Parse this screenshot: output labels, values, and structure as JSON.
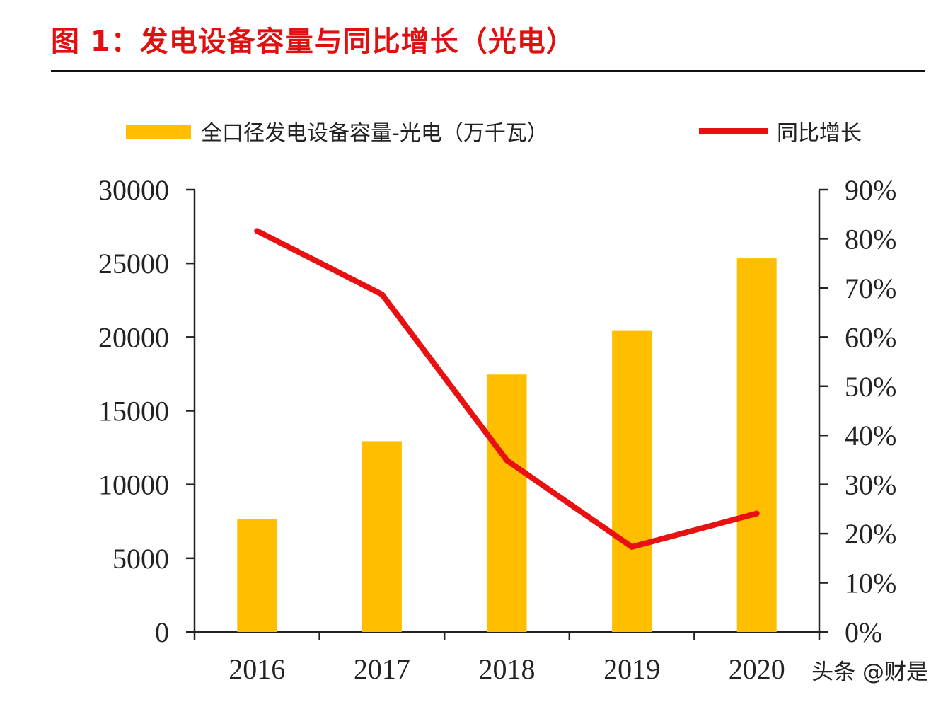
{
  "title": "图 1：发电设备容量与同比增长（光电）",
  "watermark": "头条 @财是",
  "chart_data": {
    "type": "bar+line",
    "categories": [
      "2016",
      "2017",
      "2018",
      "2019",
      "2020"
    ],
    "series": [
      {
        "name": "全口径发电设备容量-光电（万千瓦）",
        "type": "bar",
        "axis": "left",
        "color": "#ffbf00",
        "values": [
          7630,
          12940,
          17460,
          20420,
          25340
        ]
      },
      {
        "name": "同比增长",
        "type": "line",
        "axis": "right",
        "color": "#e81010",
        "values": [
          81.6,
          68.7,
          34.9,
          17.3,
          24.1
        ]
      }
    ],
    "y_left": {
      "min": 0,
      "max": 30000,
      "ticks": [
        "0",
        "5000",
        "10000",
        "15000",
        "20000",
        "25000",
        "30000"
      ]
    },
    "y_right": {
      "min": 0,
      "max": 90,
      "ticks": [
        "0%",
        "10%",
        "20%",
        "30%",
        "40%",
        "50%",
        "60%",
        "70%",
        "80%",
        "90%"
      ]
    },
    "legend_position": "top",
    "grid": false
  }
}
